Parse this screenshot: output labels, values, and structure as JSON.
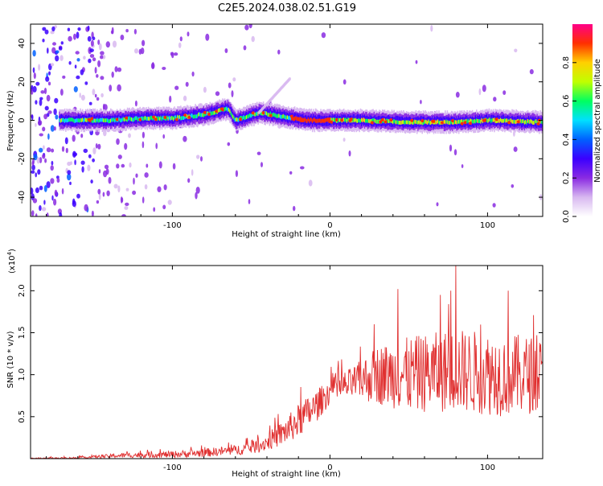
{
  "page": {
    "title": "C2E5.2024.038.02.51.G19"
  },
  "chart_data": [
    {
      "type": "heatmap",
      "xlabel": "Height of straight line (km)",
      "ylabel": "Frequency (Hz)",
      "xlim": [
        -190,
        135
      ],
      "ylim": [
        -50,
        50
      ],
      "x_ticks": [
        -100,
        0,
        100
      ],
      "y_ticks": [
        -40,
        -20,
        0,
        20,
        40
      ],
      "colorbar": {
        "label": "Normalized spectral amplitude",
        "range": [
          0,
          1
        ],
        "ticks": [
          0.0,
          0.2,
          0.4,
          0.6,
          0.8
        ],
        "colors": [
          "#ffffff",
          "#d8b8f0",
          "#8a2be2",
          "#3b00ff",
          "#0060ff",
          "#00e0ff",
          "#00ff60",
          "#c0ff00",
          "#ffd000",
          "#ff3000",
          "#ff0088"
        ]
      },
      "ridge": [
        {
          "x": -165,
          "freq": 0
        },
        {
          "x": -140,
          "freq": 0
        },
        {
          "x": -120,
          "freq": 1
        },
        {
          "x": -100,
          "freq": 1
        },
        {
          "x": -80,
          "freq": 3
        },
        {
          "x": -65,
          "freq": 6
        },
        {
          "x": -60,
          "freq": 0
        },
        {
          "x": -45,
          "freq": 4
        },
        {
          "x": -30,
          "freq": 2
        },
        {
          "x": -15,
          "freq": 0
        },
        {
          "x": 0,
          "freq": 0
        },
        {
          "x": 20,
          "freq": 0
        },
        {
          "x": 50,
          "freq": -1
        },
        {
          "x": 80,
          "freq": -1
        },
        {
          "x": 100,
          "freq": 0
        },
        {
          "x": 135,
          "freq": -1
        }
      ]
    },
    {
      "type": "line",
      "xlabel": "Height of straight line (km)",
      "ylabel": "SNR (10 * v/v)",
      "y_multiplier": "(x10",
      "y_multiplier_exp": "4",
      "y_multiplier_close": ")",
      "xlim": [
        -190,
        135
      ],
      "ylim": [
        0,
        2.3
      ],
      "x_ticks": [
        -100,
        0,
        100
      ],
      "y_ticks": [
        0.5,
        1.0,
        1.5,
        2.0
      ],
      "series": [
        {
          "color": "#e03030",
          "envelope": [
            {
              "x": -190,
              "mean": 0.0,
              "spread": 0.01
            },
            {
              "x": -160,
              "mean": 0.01,
              "spread": 0.01
            },
            {
              "x": -130,
              "mean": 0.04,
              "spread": 0.03
            },
            {
              "x": -100,
              "mean": 0.05,
              "spread": 0.04
            },
            {
              "x": -80,
              "mean": 0.07,
              "spread": 0.05
            },
            {
              "x": -60,
              "mean": 0.1,
              "spread": 0.06
            },
            {
              "x": -45,
              "mean": 0.15,
              "spread": 0.08
            },
            {
              "x": -30,
              "mean": 0.3,
              "spread": 0.15
            },
            {
              "x": -20,
              "mean": 0.45,
              "spread": 0.2
            },
            {
              "x": -10,
              "mean": 0.6,
              "spread": 0.2
            },
            {
              "x": 0,
              "mean": 0.8,
              "spread": 0.15
            },
            {
              "x": 15,
              "mean": 0.9,
              "spread": 0.2
            },
            {
              "x": 30,
              "mean": 1.0,
              "spread": 0.35
            },
            {
              "x": 50,
              "mean": 1.0,
              "spread": 0.45
            },
            {
              "x": 80,
              "mean": 1.05,
              "spread": 0.5
            },
            {
              "x": 110,
              "mean": 1.0,
              "spread": 0.5
            },
            {
              "x": 135,
              "mean": 1.0,
              "spread": 0.45
            }
          ],
          "peaks": [
            {
              "x": 43,
              "y": 2.02
            },
            {
              "x": 80,
              "y": 2.3
            },
            {
              "x": 70,
              "y": 1.95
            },
            {
              "x": 113,
              "y": 2.0
            }
          ]
        }
      ]
    }
  ]
}
